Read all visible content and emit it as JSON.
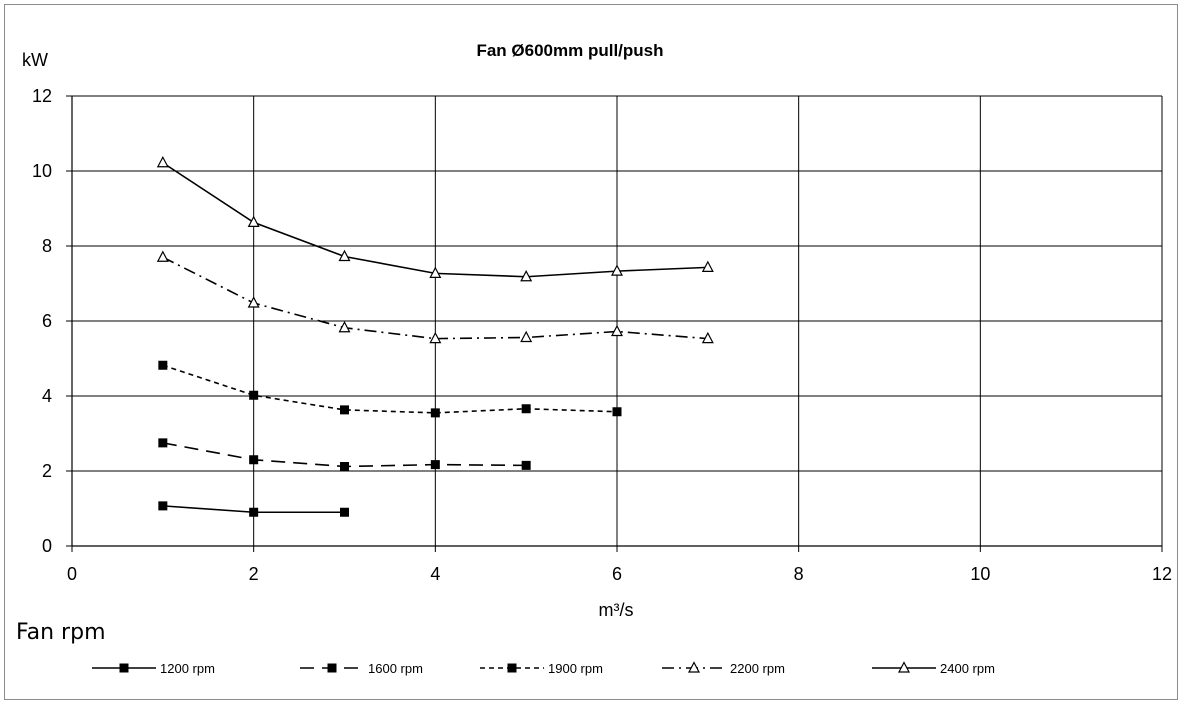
{
  "chart_data": {
    "type": "line",
    "title": "Fan Ø600mm pull/push",
    "xlabel": "m³/s",
    "ylabel": "kW",
    "xlim": [
      0,
      12
    ],
    "ylim": [
      0,
      12
    ],
    "xticks": [
      0,
      2,
      4,
      6,
      8,
      10,
      12
    ],
    "yticks": [
      0,
      2,
      4,
      6,
      8,
      10,
      12
    ],
    "grid": true,
    "legend_title": "Fan rpm",
    "legend_position": "bottom",
    "series": [
      {
        "name": "1200 rpm",
        "x": [
          1,
          2,
          3
        ],
        "y": [
          1.07,
          0.9,
          0.9
        ],
        "marker": "square",
        "dash": "solid"
      },
      {
        "name": "1600 rpm",
        "x": [
          1,
          2,
          3,
          4,
          5
        ],
        "y": [
          2.75,
          2.3,
          2.12,
          2.17,
          2.15
        ],
        "marker": "square",
        "dash": "longdash"
      },
      {
        "name": "1900 rpm",
        "x": [
          1,
          2,
          3,
          4,
          5,
          6
        ],
        "y": [
          4.82,
          4.02,
          3.63,
          3.55,
          3.66,
          3.58
        ],
        "marker": "square",
        "dash": "shortdash"
      },
      {
        "name": "2200 rpm",
        "x": [
          1,
          2,
          3,
          4,
          5,
          6,
          7
        ],
        "y": [
          7.7,
          6.48,
          5.82,
          5.53,
          5.56,
          5.72,
          5.53
        ],
        "marker": "triangle",
        "dash": "dashdot"
      },
      {
        "name": "2400 rpm",
        "x": [
          1,
          2,
          3,
          4,
          5,
          6,
          7
        ],
        "y": [
          10.22,
          8.63,
          7.72,
          7.27,
          7.18,
          7.33,
          7.43
        ],
        "marker": "triangle",
        "dash": "solid"
      }
    ]
  }
}
